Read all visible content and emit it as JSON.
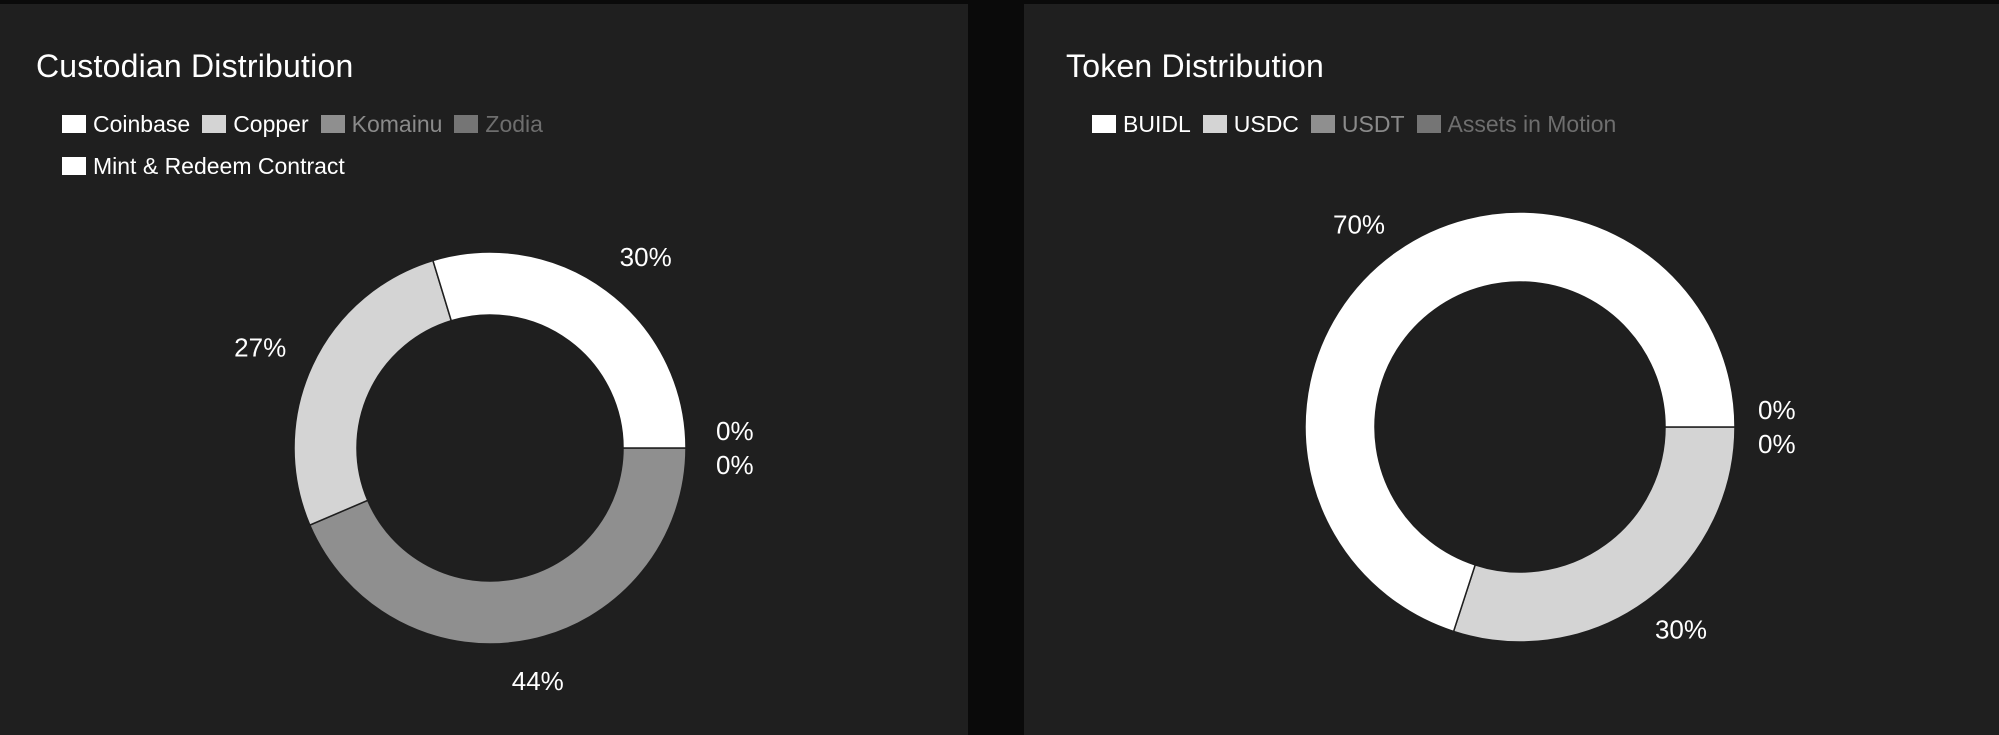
{
  "chart_data": [
    {
      "type": "pie",
      "title": "Custodian Distribution",
      "legend_position": "top-left",
      "categories": [
        "Coinbase",
        "Copper",
        "Komainu",
        "Zodia",
        "Mint & Redeem Contract"
      ],
      "colors": [
        "#ffffff",
        "#d4d4d4",
        "#8f8f8f",
        "#757575",
        "#ffffff"
      ],
      "legend_text_colors": [
        "#ffffff",
        "#ffffff",
        "#8a8a8a",
        "#6e6e6e",
        "#ffffff"
      ],
      "labels": [
        "30%",
        "27%",
        "44%",
        "0%",
        "0%"
      ],
      "values": [
        30,
        27,
        44,
        0,
        0
      ],
      "draw_order": [
        2,
        1,
        0,
        3,
        4
      ]
    },
    {
      "type": "pie",
      "title": "Token Distribution",
      "legend_position": "top-left",
      "categories": [
        "BUIDL",
        "USDC",
        "USDT",
        "Assets in Motion"
      ],
      "colors": [
        "#ffffff",
        "#d4d4d4",
        "#8f8f8f",
        "#757575"
      ],
      "legend_text_colors": [
        "#ffffff",
        "#ffffff",
        "#8a8a8a",
        "#6e6e6e"
      ],
      "labels": [
        "70%",
        "30%",
        "0%",
        "0%"
      ],
      "values": [
        70,
        30,
        0,
        0
      ],
      "draw_order": [
        1,
        0,
        2,
        3
      ]
    }
  ]
}
